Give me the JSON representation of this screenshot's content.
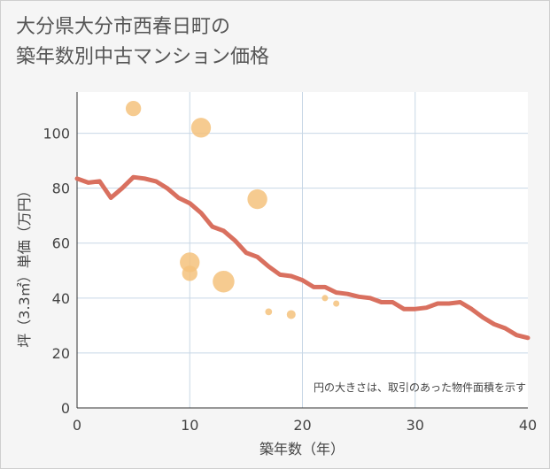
{
  "chart_data": {
    "type": "scatter",
    "title_lines": [
      "大分県大分市西春日町の",
      "築年数別中古マンション価格"
    ],
    "xlabel": "築年数（年）",
    "ylabel": "坪（3.3㎡）単価（万円）",
    "xlim": [
      0,
      40
    ],
    "ylim": [
      0,
      115
    ],
    "xticks": [
      0,
      10,
      20,
      30,
      40
    ],
    "yticks": [
      0,
      20,
      40,
      60,
      80,
      100
    ],
    "grid": true,
    "note": "円の大きさは、取引のあった物件面積を示す",
    "colors": {
      "line": "#d9705f",
      "bubble": "#f5c27d",
      "plot_bg": "#ffffff",
      "grid": "#c8d7e6"
    },
    "series": [
      {
        "name": "trend",
        "type": "line",
        "x": [
          0,
          1,
          2,
          3,
          4,
          5,
          6,
          7,
          8,
          9,
          10,
          11,
          12,
          13,
          14,
          15,
          16,
          17,
          18,
          19,
          20,
          21,
          22,
          23,
          24,
          25,
          26,
          27,
          28,
          29,
          30,
          31,
          32,
          33,
          34,
          35,
          36,
          37,
          38,
          39,
          40
        ],
        "y": [
          83.5,
          82,
          82.5,
          76.5,
          80,
          84,
          83.5,
          82.5,
          80,
          76.5,
          74.5,
          71,
          66,
          64.5,
          61,
          56.5,
          55,
          51.5,
          48.5,
          48,
          46.5,
          44,
          44,
          42,
          41.5,
          40.5,
          40,
          38.5,
          38.5,
          36,
          36,
          36.5,
          38,
          38,
          38.5,
          36,
          33,
          30.5,
          29,
          26.5,
          25.5
        ]
      },
      {
        "name": "transactions",
        "type": "bubble",
        "points": [
          {
            "x": 5,
            "y": 109,
            "size": 3
          },
          {
            "x": 11,
            "y": 102,
            "size": 5
          },
          {
            "x": 16,
            "y": 76,
            "size": 5
          },
          {
            "x": 10,
            "y": 53,
            "size": 5
          },
          {
            "x": 10,
            "y": 49,
            "size": 3
          },
          {
            "x": 13,
            "y": 46,
            "size": 6
          },
          {
            "x": 17,
            "y": 35,
            "size": 0.6
          },
          {
            "x": 19,
            "y": 34,
            "size": 1
          },
          {
            "x": 22,
            "y": 40,
            "size": 0.5
          },
          {
            "x": 23,
            "y": 38,
            "size": 0.5
          }
        ]
      }
    ]
  }
}
